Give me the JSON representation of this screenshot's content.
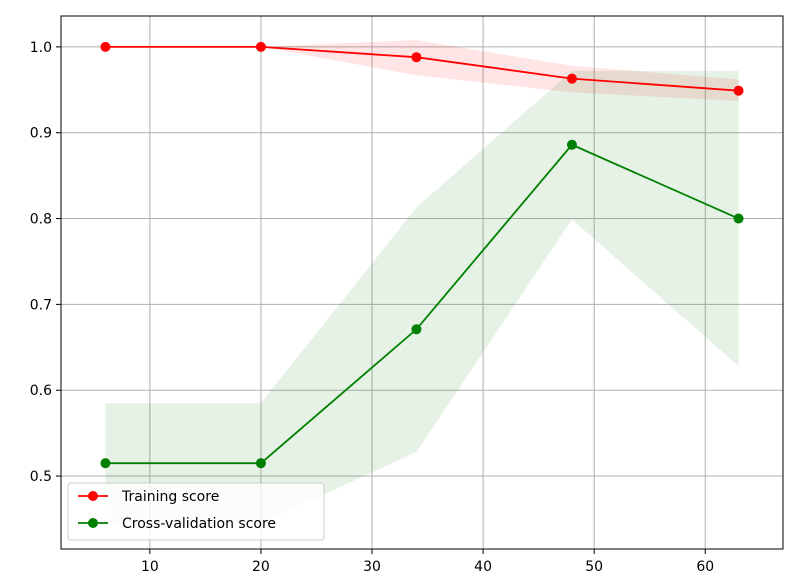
{
  "chart_data": {
    "type": "line",
    "xlim": [
      2,
      67
    ],
    "ylim": [
      0.415,
      1.036
    ],
    "x_ticks": [
      10,
      20,
      30,
      40,
      50,
      60
    ],
    "y_ticks": [
      0.5,
      0.6,
      0.7,
      0.8,
      0.9,
      1.0
    ],
    "x_tick_labels": [
      "10",
      "20",
      "30",
      "40",
      "50",
      "60"
    ],
    "y_tick_labels": [
      "0.5",
      "0.6",
      "0.7",
      "0.8",
      "0.9",
      "1.0"
    ],
    "grid": true,
    "legend_position": "lower-left",
    "x": [
      6,
      20,
      34,
      48,
      63
    ],
    "series": [
      {
        "name": "Training score",
        "color": "#ff0000",
        "values": [
          1.0,
          1.0,
          0.988,
          0.963,
          0.949
        ],
        "band_lower": [
          1.0,
          1.0,
          0.967,
          0.947,
          0.937
        ],
        "band_upper": [
          1.0,
          1.0,
          1.008,
          0.978,
          0.962
        ]
      },
      {
        "name": "Cross-validation score",
        "color": "#008000",
        "values": [
          0.515,
          0.515,
          0.671,
          0.886,
          0.8
        ],
        "band_lower": [
          0.445,
          0.445,
          0.528,
          0.799,
          0.628
        ],
        "band_upper": [
          0.585,
          0.585,
          0.813,
          0.972,
          0.972
        ]
      }
    ]
  }
}
